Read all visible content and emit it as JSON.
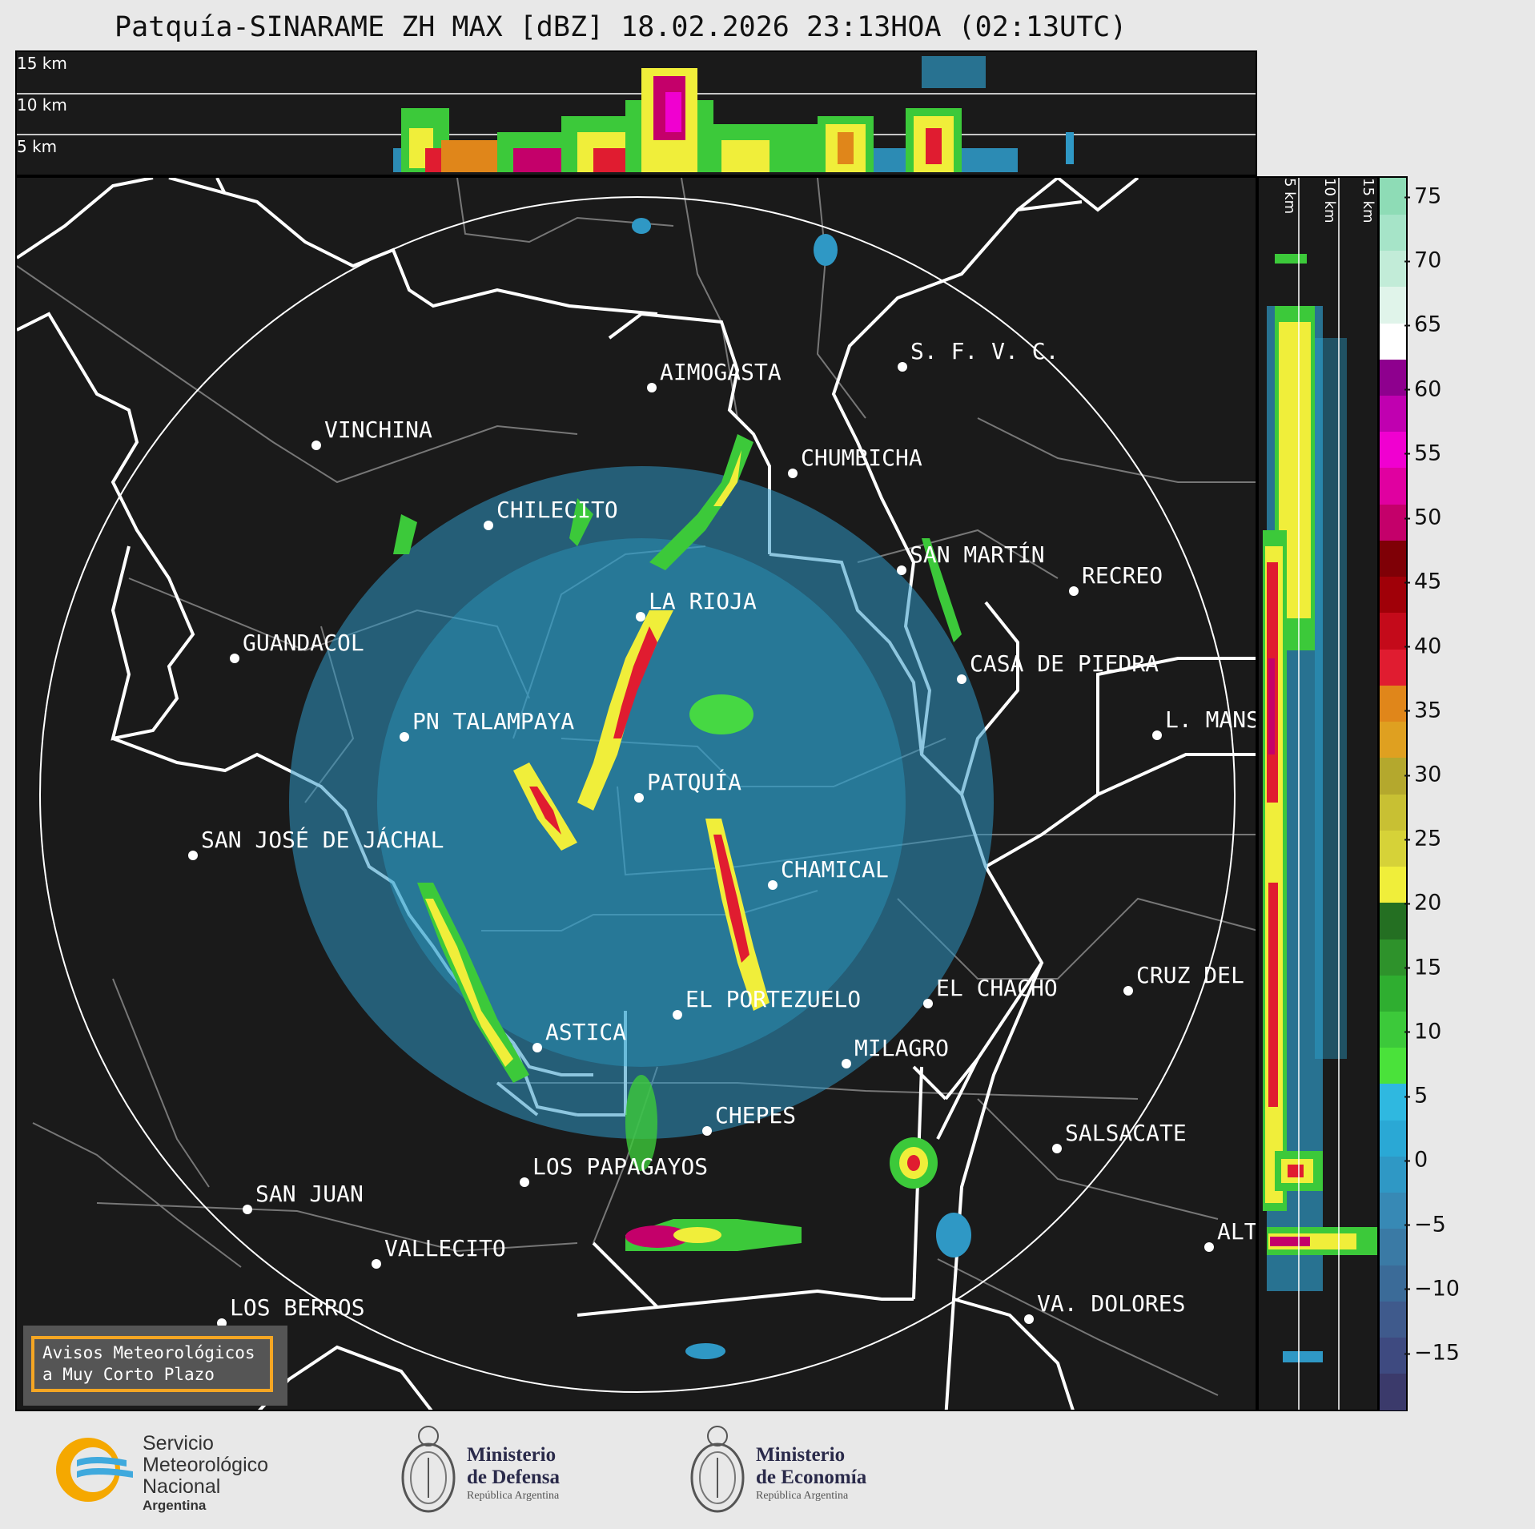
{
  "title": "Patquía-SINARAME ZH MAX [dBZ] 18.02.2026 23:13HOA (02:13UTC)",
  "top_panel": {
    "height_labels": [
      "15 km",
      "10 km",
      "5 km"
    ]
  },
  "side_panel": {
    "height_labels": [
      "5 km",
      "10 km",
      "15 km"
    ]
  },
  "colorbar": {
    "ticks": [
      "75",
      "70",
      "65",
      "60",
      "55",
      "50",
      "45",
      "40",
      "35",
      "30",
      "25",
      "20",
      "15",
      "10",
      "5",
      "0",
      "−5",
      "−10",
      "−15"
    ],
    "colors": [
      "#3b3a6b",
      "#3e4a80",
      "#3f5a8c",
      "#3b6b98",
      "#3a7aa5",
      "#3789b5",
      "#2f98c5",
      "#2aa8d5",
      "#2fb8e0",
      "#4ae23a",
      "#3cc93a",
      "#2fae30",
      "#2e922b",
      "#246f22",
      "#f0ee3a",
      "#d6d238",
      "#c8c033",
      "#b4a82d",
      "#dfa020",
      "#e0861a",
      "#e01c30",
      "#c40a1a",
      "#a00008",
      "#7f0006",
      "#c4006a",
      "#e000a0",
      "#f000d0",
      "#c000b0",
      "#8e008e",
      "#ffffff",
      "#e0f4ea",
      "#c2ecd8",
      "#a6e4c8",
      "#8edcb6"
    ]
  },
  "cities": [
    {
      "name": "AIMOGASTA"
    },
    {
      "name": "S. F. V. C."
    },
    {
      "name": "VINCHINA"
    },
    {
      "name": "CHUMBICHA"
    },
    {
      "name": "CHILECITO"
    },
    {
      "name": "SAN MARTÍN"
    },
    {
      "name": "RECREO"
    },
    {
      "name": "LA RIOJA"
    },
    {
      "name": "GUANDACOL"
    },
    {
      "name": "CASA DE PIEDRA"
    },
    {
      "name": "PN TALAMPAYA"
    },
    {
      "name": "L. MANS"
    },
    {
      "name": "PATQUÍA"
    },
    {
      "name": "SAN JOSÉ DE JÁCHAL"
    },
    {
      "name": "CHAMICAL"
    },
    {
      "name": "EL CHACHO"
    },
    {
      "name": "CRUZ DEL"
    },
    {
      "name": "EL PORTEZUELO"
    },
    {
      "name": "ASTICA"
    },
    {
      "name": "MILAGRO"
    },
    {
      "name": "CHEPES"
    },
    {
      "name": "SALSACATE"
    },
    {
      "name": "LOS PAPAGAYOS"
    },
    {
      "name": "SAN JUAN"
    },
    {
      "name": "VALLECITO"
    },
    {
      "name": "ALT"
    },
    {
      "name": "LOS BERROS"
    },
    {
      "name": "VA. DOLORES"
    }
  ],
  "warning_box": {
    "line1": "Avisos Meteorológicos",
    "line2": "a Muy Corto Plazo"
  },
  "logos": {
    "smn": {
      "line1": "Servicio",
      "line2": "Meteorológico",
      "line3": "Nacional",
      "line4": "Argentina"
    },
    "defensa": {
      "line1": "Ministerio",
      "line2": "de Defensa",
      "line3": "República Argentina"
    },
    "economia": {
      "line1": "Ministerio",
      "line2": "de Economía",
      "line3": "República Argentina"
    }
  }
}
